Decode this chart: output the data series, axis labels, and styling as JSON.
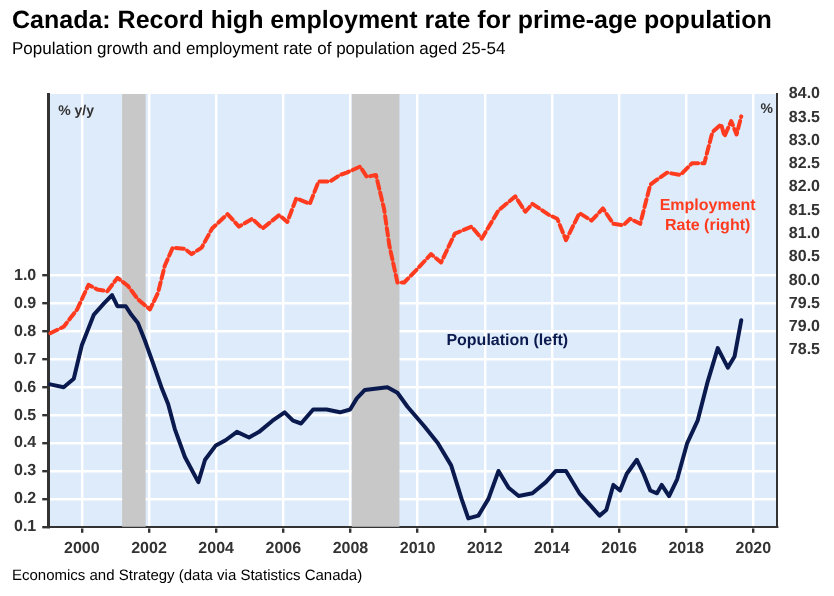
{
  "chart_data": {
    "type": "line",
    "title": "Canada: Record high employment rate for prime-age population",
    "subtitle": "Population growth and employment rate of population aged 25-54",
    "ylabel": "% y/y",
    "y2label": "%",
    "annotations": [
      "Economics and Strategy (data via Statistics Canada)"
    ],
    "xlim": [
      1999,
      2020.7
    ],
    "xticks": [
      2000,
      2002,
      2004,
      2006,
      2008,
      2010,
      2012,
      2014,
      2016,
      2018,
      2020
    ],
    "ylim": [
      0.1,
      1.65
    ],
    "yticks": [
      0.1,
      0.2,
      0.3,
      0.4,
      0.5,
      0.6,
      0.7,
      0.8,
      0.9,
      {
        "value": 1,
        "label": "1.0"
      }
    ],
    "y2lim": [
      74.7,
      84.0
    ],
    "y2ticks": [
      78.5,
      {
        "value": 79,
        "label": "79.0"
      },
      79.5,
      {
        "value": 80,
        "label": "80.0"
      },
      80.5,
      {
        "value": 81,
        "label": "81.0"
      },
      81.5,
      {
        "value": 82,
        "label": "82.0"
      },
      82.5,
      {
        "value": 83,
        "label": "83.0"
      },
      83.5,
      {
        "value": 84,
        "label": "84.0"
      }
    ],
    "grid": true,
    "legend": false,
    "marker": "none",
    "bands": [
      {
        "axis": "x",
        "from": 2001.2,
        "to": 2001.9,
        "color": "#c8c8c8"
      },
      {
        "axis": "x",
        "from": 2008.04,
        "to": 2009.46,
        "color": "#c8c8c8"
      }
    ],
    "series": [
      {
        "name": "Population (left)",
        "color": "#0b1a4e",
        "line_style": "solid",
        "x": [
          1999.06,
          1999.46,
          1999.76,
          2000.0,
          2000.36,
          2000.66,
          2000.9,
          2001.06,
          2001.31,
          2001.47,
          2001.67,
          2001.87,
          2002.11,
          2002.37,
          2002.57,
          2002.77,
          2003.07,
          2003.47,
          2003.67,
          2003.98,
          2004.28,
          2004.62,
          2004.98,
          2005.28,
          2005.68,
          2006.04,
          2006.29,
          2006.53,
          2006.89,
          2007.29,
          2007.69,
          2007.99,
          2008.19,
          2008.43,
          2009.1,
          2009.4,
          2009.7,
          2010.2,
          2010.6,
          2011.0,
          2011.31,
          2011.51,
          2011.81,
          2012.11,
          2012.41,
          2012.71,
          2013.01,
          2013.42,
          2013.82,
          2014.12,
          2014.42,
          2014.82,
          2015.12,
          2015.42,
          2015.62,
          2015.83,
          2016.03,
          2016.23,
          2016.53,
          2016.73,
          2016.93,
          2017.13,
          2017.27,
          2017.49,
          2017.73,
          2018.03,
          2018.34,
          2018.64,
          2018.94,
          2019.24,
          2019.44,
          2019.64
        ],
        "values": [
          0.61,
          0.6,
          0.63,
          0.75,
          0.86,
          0.9,
          0.93,
          0.89,
          0.89,
          0.86,
          0.83,
          0.77,
          0.69,
          0.6,
          0.54,
          0.45,
          0.35,
          0.26,
          0.34,
          0.39,
          0.41,
          0.44,
          0.42,
          0.44,
          0.48,
          0.51,
          0.48,
          0.47,
          0.52,
          0.52,
          0.51,
          0.52,
          0.56,
          0.59,
          0.6,
          0.58,
          0.53,
          0.46,
          0.4,
          0.32,
          0.2,
          0.13,
          0.14,
          0.2,
          0.3,
          0.24,
          0.21,
          0.22,
          0.26,
          0.3,
          0.3,
          0.22,
          0.18,
          0.14,
          0.16,
          0.25,
          0.23,
          0.29,
          0.34,
          0.29,
          0.23,
          0.22,
          0.25,
          0.21,
          0.27,
          0.4,
          0.48,
          0.62,
          0.74,
          0.67,
          0.71,
          0.84
        ]
      },
      {
        "name": "Employment Rate (right)",
        "color": "#ff3b1f",
        "line_style": "dashed",
        "axis": "y2",
        "x": [
          1999.06,
          1999.46,
          1999.86,
          2000.2,
          2000.46,
          2000.76,
          2001.06,
          2001.37,
          2001.67,
          2002.03,
          2002.27,
          2002.47,
          2002.71,
          2003.07,
          2003.27,
          2003.57,
          2003.88,
          2004.34,
          2004.68,
          2005.08,
          2005.38,
          2005.88,
          2006.12,
          2006.39,
          2006.79,
          2007.05,
          2007.39,
          2007.69,
          2007.89,
          2008.29,
          2008.49,
          2008.76,
          2009.0,
          2009.16,
          2009.4,
          2009.6,
          2009.9,
          2010.4,
          2010.7,
          2011.11,
          2011.61,
          2011.91,
          2012.41,
          2012.91,
          2013.21,
          2013.42,
          2013.92,
          2014.16,
          2014.42,
          2014.82,
          2015.18,
          2015.52,
          2015.83,
          2016.13,
          2016.33,
          2016.63,
          2016.93,
          2017.13,
          2017.43,
          2017.83,
          2018.17,
          2018.54,
          2018.78,
          2019.04,
          2019.14,
          2019.34,
          2019.5,
          2019.64
        ],
        "values": [
          78.86,
          79.0,
          79.37,
          79.9,
          79.8,
          79.76,
          80.05,
          79.88,
          79.59,
          79.37,
          79.73,
          80.31,
          80.7,
          80.67,
          80.56,
          80.7,
          81.11,
          81.42,
          81.15,
          81.32,
          81.11,
          81.4,
          81.25,
          81.76,
          81.64,
          82.12,
          82.12,
          82.26,
          82.31,
          82.44,
          82.22,
          82.26,
          81.54,
          80.74,
          79.95,
          79.95,
          80.17,
          80.56,
          80.38,
          81.0,
          81.15,
          80.89,
          81.5,
          81.8,
          81.47,
          81.64,
          81.4,
          81.32,
          80.86,
          81.44,
          81.28,
          81.54,
          81.21,
          81.18,
          81.32,
          81.21,
          82.05,
          82.16,
          82.31,
          82.26,
          82.51,
          82.51,
          83.18,
          83.35,
          83.09,
          83.42,
          83.13,
          83.52
        ]
      }
    ]
  }
}
